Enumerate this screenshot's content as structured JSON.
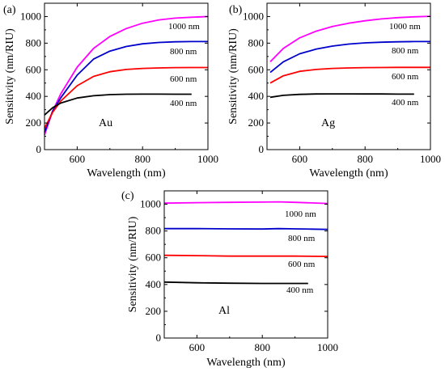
{
  "chart_data": [
    {
      "type": "line",
      "panel_label": "(a)",
      "annotation": "Au",
      "xlabel": "Wavelength (nm)",
      "ylabel": "Sensitivity (nm/RIU)",
      "xlim": [
        500,
        1000
      ],
      "ylim": [
        0,
        1100
      ],
      "xticks": [
        "600",
        "800",
        "1000"
      ],
      "yticks": [
        "0",
        "200",
        "400",
        "600",
        "800",
        "1000"
      ],
      "series": [
        {
          "name": "1000 nm",
          "color": "#ff00ff",
          "x": [
            500,
            525,
            550,
            600,
            650,
            700,
            750,
            800,
            850,
            900,
            950,
            1000
          ],
          "y": [
            110,
            290,
            420,
            620,
            760,
            850,
            910,
            950,
            975,
            988,
            995,
            1000
          ]
        },
        {
          "name": "800 nm",
          "color": "#0000cc",
          "x": [
            500,
            525,
            550,
            600,
            650,
            700,
            750,
            800,
            850,
            900,
            950,
            1000
          ],
          "y": [
            130,
            290,
            390,
            560,
            680,
            740,
            775,
            795,
            805,
            810,
            812,
            812
          ]
        },
        {
          "name": "600 nm",
          "color": "#ff0000",
          "x": [
            500,
            525,
            550,
            600,
            650,
            700,
            750,
            800,
            850,
            900,
            950,
            1000
          ],
          "y": [
            160,
            280,
            365,
            480,
            550,
            585,
            602,
            610,
            614,
            616,
            617,
            617
          ]
        },
        {
          "name": "400 nm",
          "color": "#000000",
          "x": [
            500,
            525,
            550,
            600,
            650,
            700,
            750,
            800,
            850,
            900,
            950
          ],
          "y": [
            260,
            315,
            350,
            388,
            405,
            413,
            416,
            417,
            417,
            416,
            416
          ]
        }
      ]
    },
    {
      "type": "line",
      "panel_label": "(b)",
      "annotation": "Ag",
      "xlabel": "Wavelength (nm)",
      "ylabel": "Sensitivity (nm/RIU)",
      "xlim": [
        500,
        1000
      ],
      "ylim": [
        0,
        1100
      ],
      "xticks": [
        "600",
        "800",
        "1000"
      ],
      "yticks": [
        "0",
        "200",
        "400",
        "600",
        "800",
        "1000"
      ],
      "series": [
        {
          "name": "1000 nm",
          "color": "#ff00ff",
          "x": [
            510,
            550,
            600,
            650,
            700,
            750,
            800,
            850,
            900,
            950,
            1000
          ],
          "y": [
            660,
            760,
            840,
            890,
            925,
            950,
            968,
            982,
            992,
            998,
            1002
          ]
        },
        {
          "name": "800 nm",
          "color": "#0000cc",
          "x": [
            510,
            550,
            600,
            650,
            700,
            750,
            800,
            850,
            900,
            950,
            1000
          ],
          "y": [
            580,
            660,
            720,
            755,
            778,
            793,
            802,
            807,
            810,
            812,
            812
          ]
        },
        {
          "name": "600 nm",
          "color": "#ff0000",
          "x": [
            510,
            550,
            600,
            650,
            700,
            750,
            800,
            850,
            900,
            950,
            1000
          ],
          "y": [
            500,
            555,
            588,
            602,
            610,
            614,
            616,
            617,
            618,
            618,
            618
          ]
        },
        {
          "name": "400 nm",
          "color": "#000000",
          "x": [
            510,
            550,
            600,
            650,
            700,
            750,
            800,
            850,
            900,
            950
          ],
          "y": [
            393,
            408,
            415,
            418,
            419,
            419,
            418,
            418,
            417,
            417
          ]
        }
      ]
    },
    {
      "type": "line",
      "panel_label": "(c)",
      "annotation": "Al",
      "xlabel": "Wavelength (nm)",
      "ylabel": "Sensitivity (nm/RIU)",
      "xlim": [
        500,
        1000
      ],
      "ylim": [
        0,
        1100
      ],
      "xticks": [
        "600",
        "800",
        "1000"
      ],
      "yticks": [
        "0",
        "200",
        "400",
        "600",
        "800",
        "1000"
      ],
      "series": [
        {
          "name": "1000 nm",
          "color": "#ff00ff",
          "x": [
            500,
            600,
            700,
            800,
            850,
            900,
            950,
            1000
          ],
          "y": [
            1008,
            1012,
            1014,
            1016,
            1018,
            1014,
            1010,
            1006
          ]
        },
        {
          "name": "800 nm",
          "color": "#0000cc",
          "x": [
            500,
            600,
            700,
            800,
            850,
            900,
            950,
            1000
          ],
          "y": [
            818,
            818,
            816,
            815,
            818,
            816,
            814,
            812
          ]
        },
        {
          "name": "600 nm",
          "color": "#ff0000",
          "x": [
            500,
            600,
            700,
            800,
            900,
            1000
          ],
          "y": [
            618,
            616,
            612,
            612,
            612,
            610
          ]
        },
        {
          "name": "400 nm",
          "color": "#000000",
          "x": [
            500,
            600,
            700,
            800,
            900,
            940
          ],
          "y": [
            418,
            413,
            410,
            408,
            408,
            408
          ]
        }
      ]
    }
  ]
}
